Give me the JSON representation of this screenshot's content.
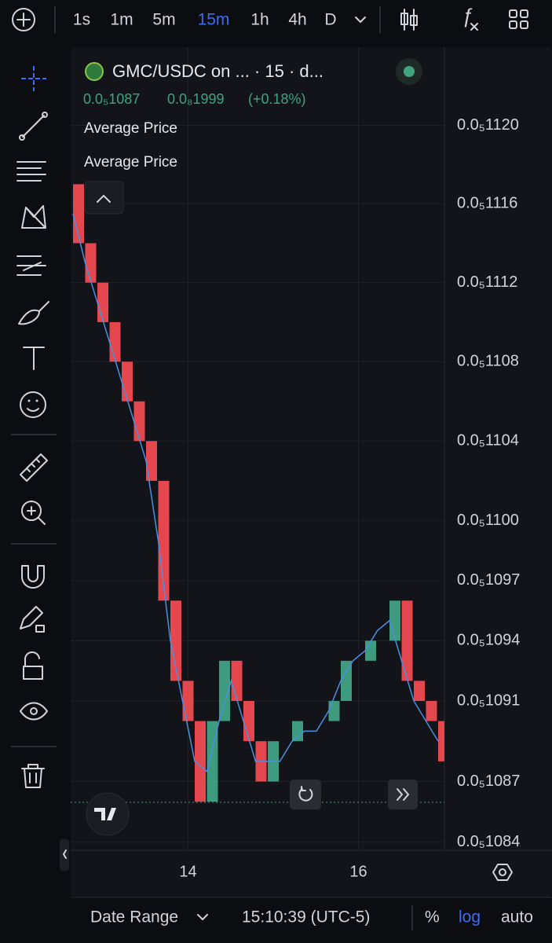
{
  "toolbar": {
    "intervals": [
      "1s",
      "1m",
      "5m",
      "15m",
      "1h",
      "4h",
      "D"
    ],
    "active": 3
  },
  "legend": {
    "symbol": "GMC/USDC on ... · 15 · d...",
    "price": "0.0₅1087",
    "change": "0.0₈1999",
    "change_percent": "(+0.18%)",
    "indicators": [
      "Average Price",
      "Average Price"
    ]
  },
  "chart_data": {
    "type": "candlestick",
    "categories": [
      null,
      null,
      null,
      null,
      null,
      null,
      null,
      null,
      null,
      "14",
      null,
      null,
      null,
      null,
      null,
      null,
      null,
      null,
      null,
      null,
      null,
      null,
      null,
      "16",
      null,
      null,
      null,
      null,
      null,
      null,
      null
    ],
    "open": [
      1.117e-06,
      1.114e-06,
      1.112e-06,
      1.11e-06,
      1.108e-06,
      1.106e-06,
      1.104e-06,
      1.102e-06,
      1.096e-06,
      1.092e-06,
      1.09e-06,
      1.086e-06,
      1.09e-06,
      1.093e-06,
      1.091e-06,
      1.089e-06,
      1.087e-06,
      null,
      1.089e-06,
      null,
      null,
      1.09e-06,
      1.091e-06,
      null,
      1.093e-06,
      null,
      1.094e-06,
      1.096e-06,
      1.092e-06,
      1.091e-06,
      1.09e-06
    ],
    "close": [
      1.114e-06,
      1.112e-06,
      1.11e-06,
      1.108e-06,
      1.106e-06,
      1.104e-06,
      1.102e-06,
      1.096e-06,
      1.092e-06,
      1.09e-06,
      1.086e-06,
      1.09e-06,
      1.093e-06,
      1.091e-06,
      1.089e-06,
      1.087e-06,
      1.089e-06,
      null,
      1.09e-06,
      null,
      null,
      1.091e-06,
      1.093e-06,
      null,
      1.094e-06,
      null,
      1.096e-06,
      1.092e-06,
      1.091e-06,
      1.09e-06,
      1.088e-06
    ],
    "up_color": "#3f9b7d",
    "down_color": "#e5474f",
    "line": {
      "name": "Average Price",
      "color": "#4a90e2",
      "values": [
        1.1155e-06,
        1.113e-06,
        1.111e-06,
        1.109e-06,
        1.107e-06,
        1.105e-06,
        1.103e-06,
        1.099e-06,
        1.094e-06,
        1.091e-06,
        1.088e-06,
        1.0875e-06,
        1.09e-06,
        1.092e-06,
        1.09e-06,
        1.088e-06,
        1.088e-06,
        1.088e-06,
        1.089e-06,
        1.0895e-06,
        1.0895e-06,
        1.0905e-06,
        1.092e-06,
        1.093e-06,
        1.0935e-06,
        1.0945e-06,
        1.095e-06,
        1.093e-06,
        1.091e-06,
        1.09e-06,
        1.089e-06
      ]
    },
    "log": true,
    "grid": true,
    "ylim": [
      1.0836e-06,
      1.124e-06
    ],
    "yticks": [
      {
        "value": 1.12e-06,
        "label": "0.0₅1120"
      },
      {
        "value": 1.116e-06,
        "label": "0.0₅1116"
      },
      {
        "value": 1.112e-06,
        "label": "0.0₅1112"
      },
      {
        "value": 1.108e-06,
        "label": "0.0₅1108"
      },
      {
        "value": 1.104e-06,
        "label": "0.0₅1104"
      },
      {
        "value": 1.1e-06,
        "label": "0.0₅1100"
      },
      {
        "value": 1.097e-06,
        "label": "0.0₅1097"
      },
      {
        "value": 1.094e-06,
        "label": "0.0₅1094"
      },
      {
        "value": 1.091e-06,
        "label": "0.0₅1091"
      },
      {
        "value": 1.087e-06,
        "label": "0.0₅1087"
      },
      {
        "value": 1.084e-06,
        "label": "0.0₅1084"
      }
    ]
  },
  "footer": {
    "date_range": "Date Range",
    "time": "15:10:39 (UTC-5)",
    "percent": "%",
    "log": "log",
    "auto": "auto"
  }
}
